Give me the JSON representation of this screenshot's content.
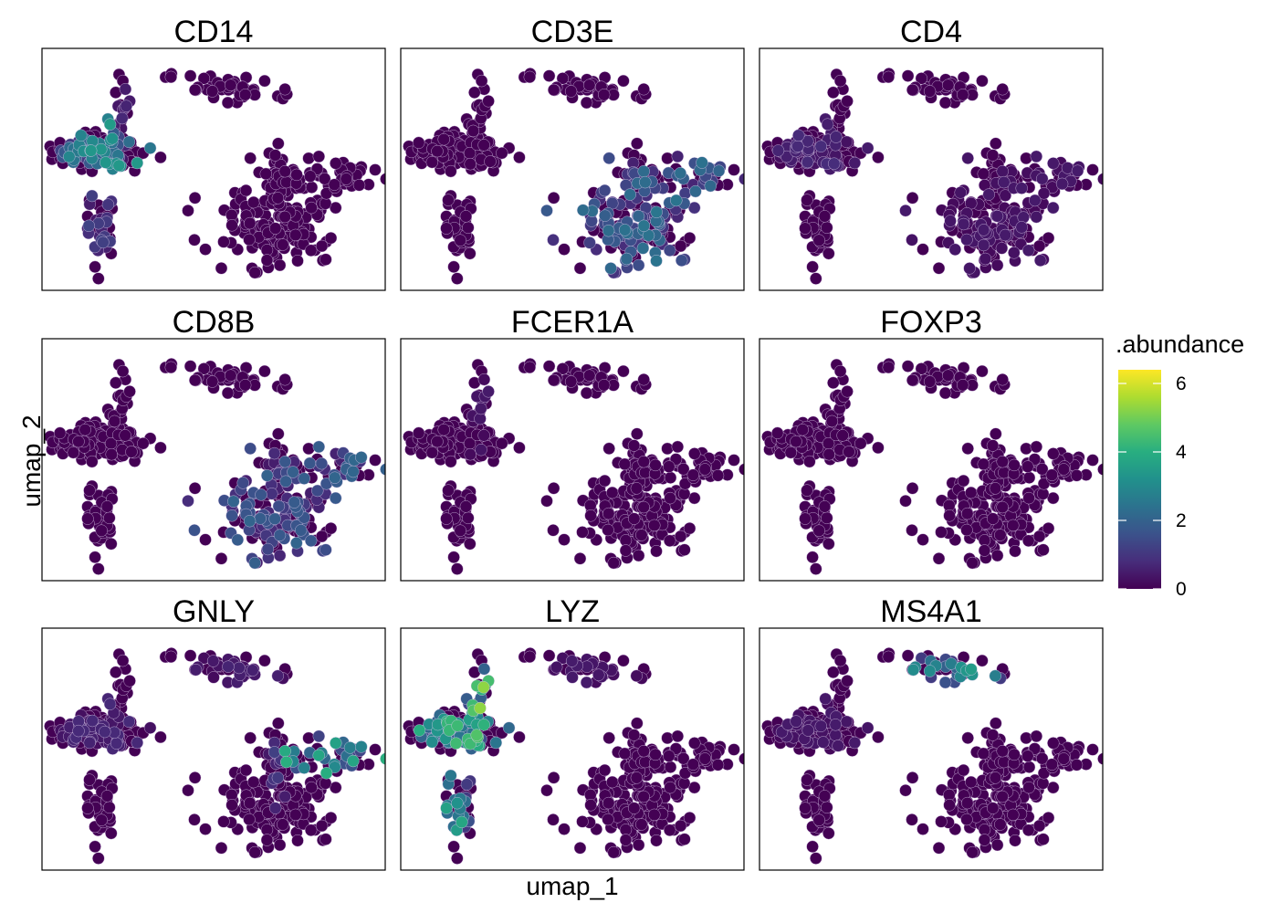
{
  "chart_data": {
    "type": "scatter",
    "layout": "facet-grid-3x3",
    "xlabel": "umap_1",
    "ylabel": "umap_2",
    "xlim": [
      -10,
      10
    ],
    "ylim": [
      -8,
      8
    ],
    "axis_ticks_visible": false,
    "grid": false,
    "legend": {
      "title": ".abundance",
      "range": [
        0,
        6.4
      ],
      "ticks": [
        0,
        2,
        4,
        6
      ],
      "tick_labels": [
        "0",
        "2",
        "4",
        "6"
      ],
      "colormap": "viridis",
      "position": "right"
    },
    "clusters": [
      {
        "name": "left-blob",
        "cx": -6.7,
        "cy": 1.3,
        "sx": 1.3,
        "sy": 0.7,
        "n": 130
      },
      {
        "name": "left-stem-down",
        "cx": -6.6,
        "cy": -3.6,
        "sx": 0.45,
        "sy": 1.4,
        "n": 40
      },
      {
        "name": "left-arm-up",
        "cx": -5.4,
        "cy": 3.6,
        "sx": 0.35,
        "sy": 1.4,
        "n": 22
      },
      {
        "name": "top-small",
        "cx": -2.5,
        "cy": 6.2,
        "sx": 0.12,
        "sy": 0.12,
        "n": 3
      },
      {
        "name": "top-mid",
        "cx": 1.1,
        "cy": 5.4,
        "sx": 1.2,
        "sy": 0.45,
        "n": 40
      },
      {
        "name": "right-body",
        "cx": 3.8,
        "cy": -3.8,
        "sx": 1.7,
        "sy": 1.3,
        "n": 150
      },
      {
        "name": "right-neck",
        "cx": 3.6,
        "cy": -0.6,
        "sx": 0.35,
        "sy": 1.2,
        "n": 30
      },
      {
        "name": "right-arm",
        "cx": 6.8,
        "cy": -0.5,
        "sx": 1.6,
        "sy": 0.45,
        "n": 55
      }
    ],
    "panels": [
      {
        "gene": "CD14",
        "expression": {
          "left-blob": 2.2,
          "left-stem-down": 0.8,
          "left-arm-up": 0.6
        }
      },
      {
        "gene": "CD3E",
        "expression": {
          "right-body": 1.6,
          "right-neck": 1.0,
          "right-arm": 1.5
        }
      },
      {
        "gene": "CD4",
        "expression": {
          "left-blob": 0.5,
          "right-body": 0.3,
          "right-arm": 0.3
        }
      },
      {
        "gene": "CD8B",
        "expression": {
          "right-body": 1.3,
          "right-arm": 1.4,
          "right-neck": 0.6
        }
      },
      {
        "gene": "FCER1A",
        "expression": {
          "left-arm-up": 0.3
        }
      },
      {
        "gene": "FOXP3",
        "expression": {}
      },
      {
        "gene": "GNLY",
        "expression": {
          "right-arm": 2.6,
          "right-neck": 0.8,
          "left-blob": 0.5,
          "top-mid": 0.4
        }
      },
      {
        "gene": "LYZ",
        "expression": {
          "left-blob": 3.0,
          "left-stem-down": 2.4,
          "left-arm-up": 3.4,
          "top-mid": 0.3
        }
      },
      {
        "gene": "MS4A1",
        "expression": {
          "top-mid": 2.2,
          "left-blob": 0.3
        }
      }
    ]
  }
}
